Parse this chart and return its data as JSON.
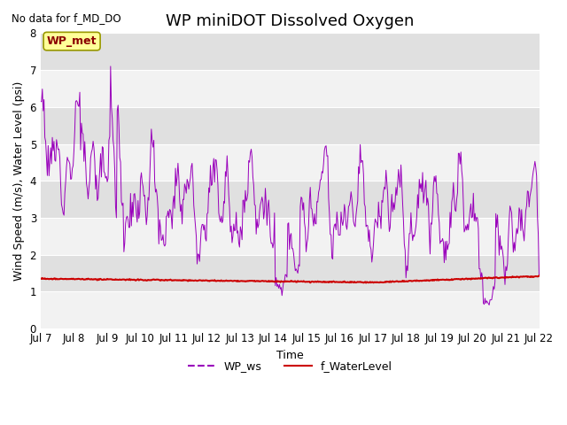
{
  "title": "WP miniDOT Dissolved Oxygen",
  "subtitle": "No data for f_MD_DO",
  "xlabel": "Time",
  "ylabel": "Wind Speed (m/s), Water Level (psi)",
  "ylim": [
    0.0,
    8.0
  ],
  "yticks": [
    0.0,
    1.0,
    2.0,
    3.0,
    4.0,
    5.0,
    6.0,
    7.0,
    8.0
  ],
  "xtick_labels": [
    "Jul 7",
    "Jul 8",
    "Jul 9",
    "Jul 10",
    "Jul 11",
    "Jul 12",
    "Jul 13",
    "Jul 14",
    "Jul 15",
    "Jul 16",
    "Jul 17",
    "Jul 18",
    "Jul 19",
    "Jul 20",
    "Jul 21",
    "Jul 22"
  ],
  "wp_ws_color": "#9900BB",
  "f_wl_color": "#CC0000",
  "background_color": "#EBEBEB",
  "band_color_light": "#F2F2F2",
  "band_color_dark": "#E0E0E0",
  "box_label": "WP_met",
  "box_facecolor": "#FFFF99",
  "box_edgecolor": "#999900",
  "legend_entries": [
    "WP_ws",
    "f_WaterLevel"
  ],
  "title_fontsize": 13,
  "label_fontsize": 9,
  "tick_fontsize": 8.5
}
